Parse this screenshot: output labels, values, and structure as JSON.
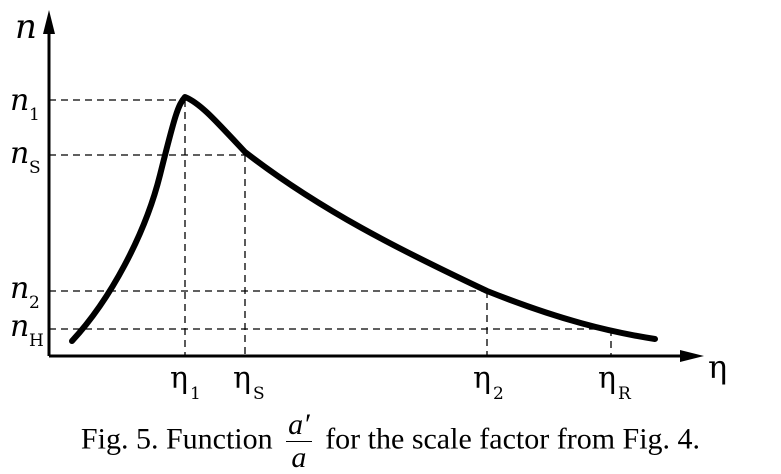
{
  "axes": {
    "y_label": "n",
    "x_label": "η"
  },
  "y_ticks": [
    {
      "name": "n",
      "sub": "1"
    },
    {
      "name": "n",
      "sub": "S"
    },
    {
      "name": "n",
      "sub": "2"
    },
    {
      "name": "n",
      "sub": "H"
    }
  ],
  "x_ticks": [
    {
      "name": "η",
      "sub": "1"
    },
    {
      "name": "η",
      "sub": "S"
    },
    {
      "name": "η",
      "sub": "2"
    },
    {
      "name": "η",
      "sub": "R"
    }
  ],
  "caption": {
    "prefix": "Fig. 5. Function",
    "frac_num": "a′",
    "frac_den": "a",
    "suffix": "for the scale factor from Fig. 4."
  }
}
